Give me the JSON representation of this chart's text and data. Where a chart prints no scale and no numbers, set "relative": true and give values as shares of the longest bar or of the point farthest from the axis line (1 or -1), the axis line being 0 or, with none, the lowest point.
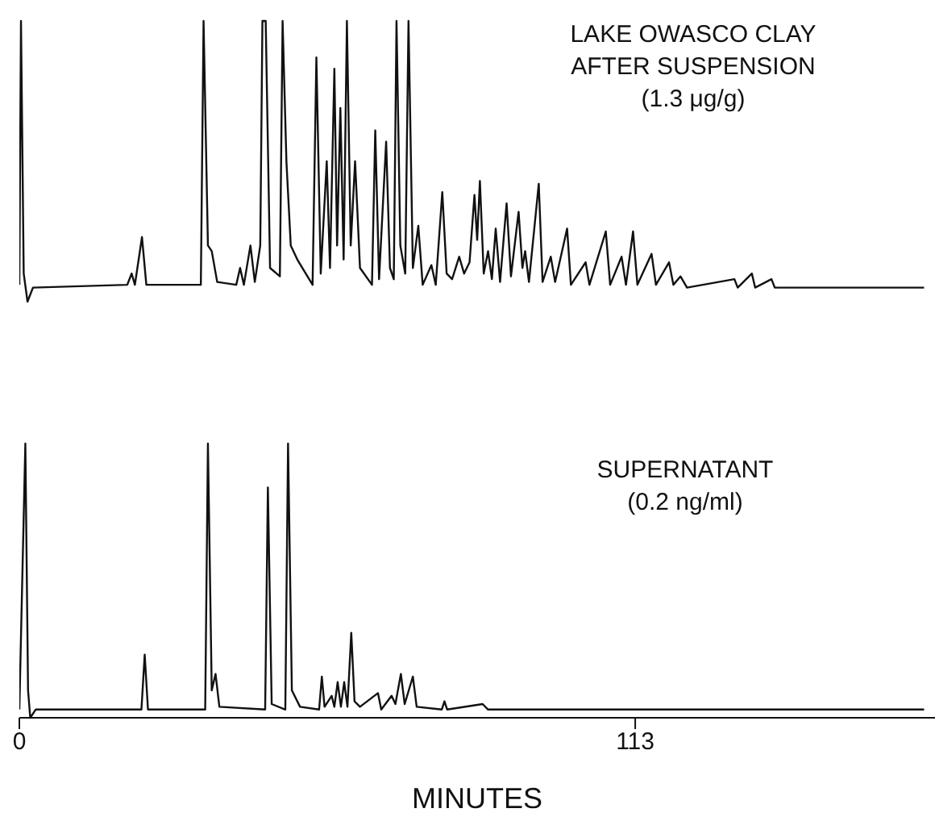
{
  "chart_data": [
    {
      "type": "line",
      "title": "LAKE OWASCO CLAY\nAFTER SUSPENSION",
      "subtitle": "(1.3 μg/g)",
      "relative": true,
      "xlim": [
        0,
        168
      ],
      "tick_labels": false,
      "marker": "none",
      "line_style": "solid",
      "color": "#111111",
      "x": [
        0,
        0.3,
        0.8,
        1.5,
        2.5,
        19.8,
        20.6,
        21.2,
        22.5,
        23.3,
        33.3,
        33.8,
        34.6,
        35.3,
        36.3,
        39.8,
        40.5,
        41.2,
        42.4,
        43.2,
        44.2,
        44.6,
        45.2,
        46,
        47.8,
        48.3,
        49,
        49.8,
        51,
        53.8,
        54.5,
        55.3,
        56.4,
        57,
        57.8,
        58.3,
        58.9,
        59.5,
        60.1,
        60.8,
        61.6,
        62.5,
        64.7,
        65.3,
        66,
        67.3,
        68,
        68.7,
        69.2,
        69.9,
        70.8,
        71.4,
        72.2,
        73.2,
        74,
        75.6,
        76.4,
        77.6,
        78.4,
        79.4,
        80.7,
        81.6,
        82.6,
        83.5,
        84,
        84.5,
        85.2,
        86,
        86.7,
        87.4,
        88.2,
        89.4,
        90.2,
        91.6,
        92.3,
        92.8,
        93.5,
        95.3,
        96,
        97.5,
        98.3,
        100.5,
        101.2,
        103.9,
        104.6,
        107.6,
        108.4,
        110.5,
        111.3,
        112.6,
        113.4,
        116,
        116.8,
        119.2,
        120,
        121.3,
        122.5,
        131.2,
        131.8,
        134.4,
        135,
        138,
        138.6,
        166
      ],
      "values": [
        0.06,
        1,
        0.1,
        0,
        0.05,
        0.06,
        0.1,
        0.06,
        0.23,
        0.06,
        0.06,
        1,
        0.2,
        0.18,
        0.07,
        0.06,
        0.12,
        0.06,
        0.2,
        0.07,
        0.2,
        1,
        1,
        0.12,
        0.09,
        1,
        0.5,
        0.2,
        0.15,
        0.06,
        0.87,
        0.1,
        0.5,
        0.12,
        0.83,
        0.2,
        0.69,
        0.15,
        1,
        0.2,
        0.5,
        0.12,
        0.06,
        0.61,
        0.08,
        0.57,
        0.12,
        0.08,
        1,
        0.2,
        0.1,
        1,
        0.12,
        0.27,
        0.06,
        0.13,
        0.06,
        0.39,
        0.1,
        0.08,
        0.16,
        0.1,
        0.14,
        0.38,
        0.22,
        0.43,
        0.1,
        0.18,
        0.08,
        0.26,
        0.07,
        0.35,
        0.09,
        0.32,
        0.12,
        0.18,
        0.07,
        0.42,
        0.07,
        0.16,
        0.07,
        0.26,
        0.06,
        0.14,
        0.06,
        0.25,
        0.06,
        0.16,
        0.06,
        0.25,
        0.06,
        0.17,
        0.06,
        0.14,
        0.06,
        0.09,
        0.05,
        0.08,
        0.05,
        0.1,
        0.05,
        0.08,
        0.05,
        0.05
      ]
    },
    {
      "type": "line",
      "title": "SUPERNATANT",
      "subtitle": "(0.2 ng/ml)",
      "xlabel": "MINUTES",
      "relative": true,
      "xlim": [
        0,
        168
      ],
      "xticks": [
        0,
        113
      ],
      "tick_labels": "x",
      "marker": "none",
      "line_style": "solid",
      "color": "#111111",
      "x": [
        0,
        1.1,
        1.6,
        2,
        3,
        22.4,
        23,
        23.6,
        34.1,
        34.6,
        35.3,
        36,
        36.7,
        45.1,
        45.6,
        46.3,
        48.8,
        49.3,
        50,
        51.5,
        55,
        55.5,
        56,
        57.3,
        57.8,
        58.4,
        59,
        59.6,
        60.2,
        60.9,
        61.5,
        62.5,
        65.8,
        66.4,
        68.3,
        69,
        70,
        70.7,
        72.2,
        72.9,
        77.5,
        78,
        78.5,
        85,
        86,
        166
      ],
      "values": [
        0.03,
        1,
        0.1,
        0,
        0.03,
        0.03,
        0.23,
        0.03,
        0.03,
        1,
        0.1,
        0.16,
        0.04,
        0.03,
        0.84,
        0.05,
        0.03,
        1,
        0.1,
        0.04,
        0.03,
        0.15,
        0.04,
        0.08,
        0.04,
        0.13,
        0.04,
        0.13,
        0.04,
        0.31,
        0.06,
        0.04,
        0.09,
        0.03,
        0.08,
        0.05,
        0.16,
        0.05,
        0.15,
        0.04,
        0.03,
        0.06,
        0.03,
        0.05,
        0.03,
        0.03
      ]
    }
  ]
}
